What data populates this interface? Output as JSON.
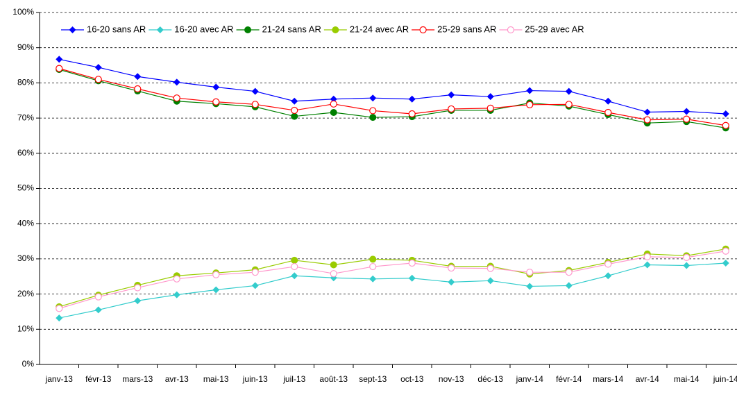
{
  "chart_data": {
    "type": "line",
    "categories": [
      "janv-13",
      "févr-13",
      "mars-13",
      "avr-13",
      "mai-13",
      "juin-13",
      "juil-13",
      "août-13",
      "sept-13",
      "oct-13",
      "nov-13",
      "déc-13",
      "janv-14",
      "févr-14",
      "mars-14",
      "avr-14",
      "mai-14",
      "juin-14"
    ],
    "series": [
      {
        "name": "16-20 sans AR",
        "color": "#0000ff",
        "marker": "diamond",
        "values": [
          86.7,
          84.4,
          81.8,
          80.2,
          78.8,
          77.6,
          74.8,
          75.4,
          75.7,
          75.4,
          76.6,
          76.1,
          77.8,
          77.6,
          74.8,
          71.7,
          71.9,
          71.2
        ]
      },
      {
        "name": "16-20 avec AR",
        "color": "#33cccc",
        "marker": "diamond",
        "values": [
          13.2,
          15.5,
          18.1,
          19.8,
          21.2,
          22.4,
          25.2,
          24.6,
          24.3,
          24.5,
          23.4,
          23.8,
          22.2,
          22.4,
          25.2,
          28.3,
          28.1,
          28.8
        ]
      },
      {
        "name": "21-24 sans AR",
        "color": "#008000",
        "marker": "circle",
        "values": [
          83.8,
          80.6,
          77.7,
          74.8,
          74.1,
          73.2,
          70.5,
          71.6,
          70.2,
          70.4,
          72.2,
          72.2,
          74.3,
          73.4,
          71.0,
          68.6,
          69.0,
          67.2
        ]
      },
      {
        "name": "21-24 avec AR",
        "color": "#99cc00",
        "marker": "circle",
        "values": [
          16.4,
          19.7,
          22.5,
          25.2,
          26.0,
          26.9,
          29.6,
          28.3,
          29.9,
          29.6,
          27.9,
          27.9,
          25.7,
          26.7,
          29.0,
          31.4,
          30.9,
          32.8
        ]
      },
      {
        "name": "25-29 sans AR",
        "color": "#ff0000",
        "marker": "open-circle",
        "values": [
          84.1,
          81.0,
          78.3,
          75.7,
          74.6,
          73.9,
          72.2,
          74.0,
          72.1,
          71.2,
          72.6,
          72.8,
          73.8,
          73.9,
          71.6,
          69.5,
          69.7,
          67.9
        ]
      },
      {
        "name": "25-29 avec AR",
        "color": "#ff99cc",
        "marker": "open-circle",
        "values": [
          15.9,
          19.2,
          21.8,
          24.3,
          25.5,
          26.2,
          27.8,
          25.8,
          27.8,
          28.8,
          27.4,
          27.3,
          26.2,
          26.2,
          28.5,
          30.6,
          30.4,
          32.2
        ]
      }
    ],
    "ylim": [
      0,
      100
    ],
    "yticks": [
      {
        "value": 0,
        "label": "0%"
      },
      {
        "value": 10,
        "label": "10%"
      },
      {
        "value": 20,
        "label": "20%"
      },
      {
        "value": 30,
        "label": "30%"
      },
      {
        "value": 40,
        "label": "40%"
      },
      {
        "value": 50,
        "label": "50%"
      },
      {
        "value": 60,
        "label": "60%"
      },
      {
        "value": 70,
        "label": "70%"
      },
      {
        "value": 80,
        "label": "80%"
      },
      {
        "value": 90,
        "label": "90%"
      },
      {
        "value": 100,
        "label": "100%"
      }
    ],
    "grid": true,
    "legend": "top"
  }
}
